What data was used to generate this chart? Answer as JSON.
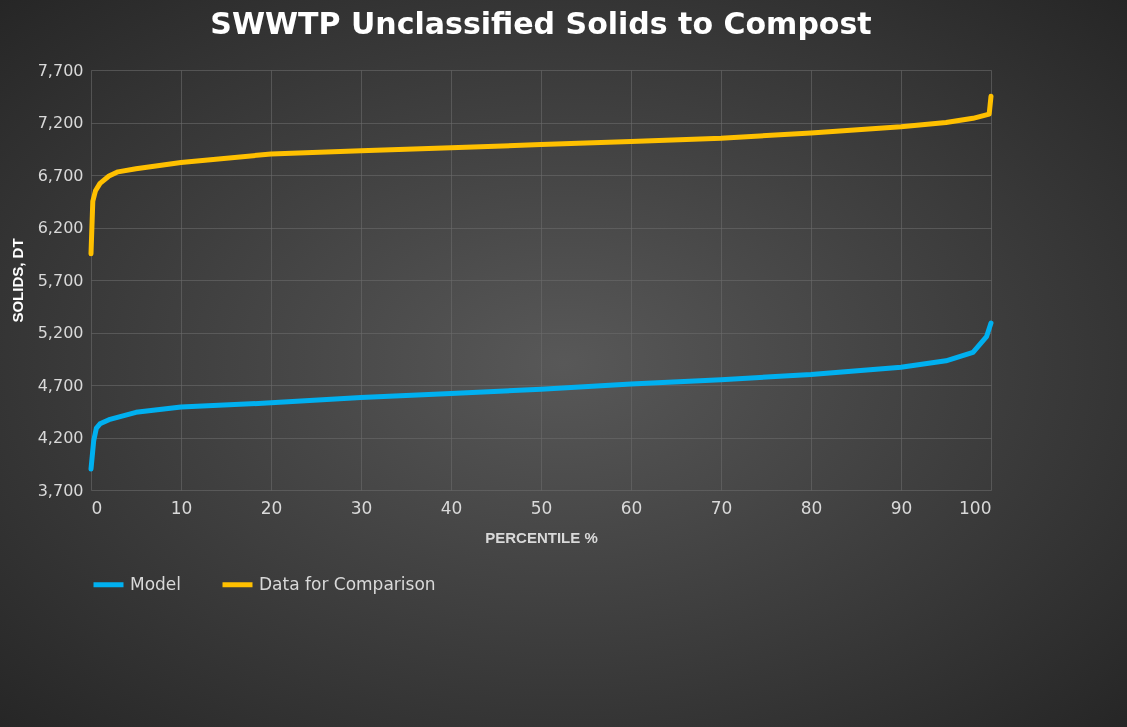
{
  "chart_data": {
    "type": "line",
    "title": "SWWTP Unclassified Solids to Compost",
    "xlabel": "PERCENTILE %",
    "ylabel": "SOLIDS, DT",
    "xlim": [
      0,
      100
    ],
    "xticks": [
      0,
      10,
      20,
      30,
      40,
      50,
      60,
      70,
      80,
      90,
      100
    ],
    "ylim": [
      3700,
      7700
    ],
    "yticks": [
      {
        "value": 3700,
        "label": "3,700"
      },
      {
        "value": 4200,
        "label": "4,200"
      },
      {
        "value": 4700,
        "label": "4,700"
      },
      {
        "value": 5200,
        "label": "5,200"
      },
      {
        "value": 5700,
        "label": "5,700"
      },
      {
        "value": 6200,
        "label": "6,200"
      },
      {
        "value": 6700,
        "label": "6,700"
      },
      {
        "value": 7200,
        "label": "7,200"
      },
      {
        "value": 7700,
        "label": "7,700"
      }
    ],
    "grid": true,
    "legend": "bottom",
    "marker": "none",
    "line_style": "solid",
    "series": [
      {
        "name": "Model",
        "color": "#00b0f0",
        "x": [
          0,
          0.3,
          0.6,
          1,
          2,
          5,
          10,
          20,
          30,
          40,
          50,
          60,
          70,
          80,
          90,
          95,
          98,
          99.5,
          100
        ],
        "values": [
          3900,
          4170,
          4290,
          4330,
          4370,
          4440,
          4490,
          4530,
          4580,
          4620,
          4660,
          4710,
          4750,
          4800,
          4870,
          4930,
          5010,
          5160,
          5290
        ]
      },
      {
        "name": "Data for Comparison",
        "color": "#ffc000",
        "x": [
          0,
          0.2,
          0.5,
          1,
          2,
          3,
          5,
          10,
          20,
          30,
          40,
          50,
          60,
          70,
          80,
          90,
          95,
          98,
          99.8,
          100
        ],
        "values": [
          5950,
          6450,
          6550,
          6620,
          6690,
          6730,
          6760,
          6820,
          6900,
          6930,
          6960,
          6990,
          7020,
          7050,
          7100,
          7160,
          7200,
          7240,
          7280,
          7450
        ]
      }
    ]
  }
}
